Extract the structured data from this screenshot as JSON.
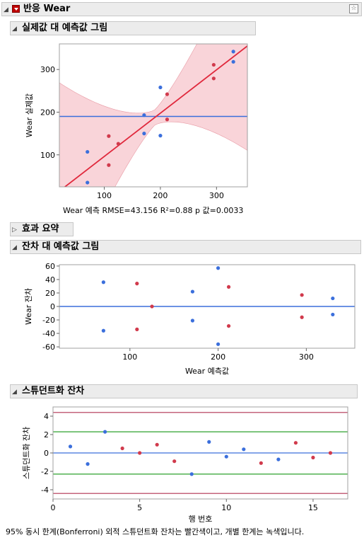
{
  "report": {
    "title": "반응 Wear"
  },
  "sections": {
    "actual_vs_pred": "실제값 대 예측값 그림",
    "effect_summary": "효과 요약",
    "resid_vs_pred": "잔차 대 예측값 그림",
    "studentized": "스튜던트화 잔차"
  },
  "icons": {
    "outline_toggle": "disclosure-triangle-icon",
    "red_menu": "red-triangle-menu-icon",
    "star": "star-icon"
  },
  "colors": {
    "red": "#d13a4c",
    "blue": "#3b6fdc",
    "green": "#2ca02c",
    "limit": "#b03050"
  },
  "chart_data": [
    {
      "type": "scatter",
      "name_text": "actual-by-predicted",
      "xlabel": "Wear 예측 RMSE=43.156 R²=0.88 p 값=0.0033",
      "ylabel": "Wear 실제값",
      "xlim": [
        20,
        355
      ],
      "ylim": [
        25,
        360
      ],
      "xticks": [
        100,
        200,
        300
      ],
      "yticks": [
        100,
        200,
        300
      ],
      "mean_line": 190,
      "fit_line": [
        [
          20,
          15
        ],
        [
          355,
          355
        ]
      ],
      "points": [
        {
          "x": 70,
          "y": 35,
          "color": "blue"
        },
        {
          "x": 70,
          "y": 107,
          "color": "blue"
        },
        {
          "x": 108,
          "y": 76,
          "color": "red"
        },
        {
          "x": 108,
          "y": 144,
          "color": "red"
        },
        {
          "x": 125,
          "y": 126,
          "color": "red"
        },
        {
          "x": 171,
          "y": 193,
          "color": "blue"
        },
        {
          "x": 171,
          "y": 150,
          "color": "blue"
        },
        {
          "x": 200,
          "y": 145,
          "color": "blue"
        },
        {
          "x": 200,
          "y": 258,
          "color": "blue"
        },
        {
          "x": 212,
          "y": 242,
          "color": "red"
        },
        {
          "x": 212,
          "y": 183,
          "color": "red"
        },
        {
          "x": 295,
          "y": 311,
          "color": "red"
        },
        {
          "x": 295,
          "y": 279,
          "color": "red"
        },
        {
          "x": 330,
          "y": 342,
          "color": "blue"
        },
        {
          "x": 330,
          "y": 318,
          "color": "blue"
        }
      ]
    },
    {
      "type": "scatter",
      "xlabel": "Wear 예측값",
      "ylabel": "Wear 잔차",
      "xlim": [
        20,
        355
      ],
      "ylim": [
        -62,
        62
      ],
      "xticks": [
        100,
        200,
        300
      ],
      "yticks": [
        -60,
        -40,
        -20,
        0,
        20,
        40,
        60
      ],
      "zero_line": 0,
      "points": [
        {
          "x": 70,
          "y": 36,
          "color": "blue"
        },
        {
          "x": 70,
          "y": -36,
          "color": "blue"
        },
        {
          "x": 108,
          "y": 34,
          "color": "red"
        },
        {
          "x": 108,
          "y": -34,
          "color": "red"
        },
        {
          "x": 125,
          "y": 0,
          "color": "red"
        },
        {
          "x": 171,
          "y": 22,
          "color": "blue"
        },
        {
          "x": 171,
          "y": -21,
          "color": "blue"
        },
        {
          "x": 200,
          "y": 57,
          "color": "blue"
        },
        {
          "x": 200,
          "y": -56,
          "color": "blue"
        },
        {
          "x": 212,
          "y": 29,
          "color": "red"
        },
        {
          "x": 212,
          "y": -29,
          "color": "red"
        },
        {
          "x": 295,
          "y": 17,
          "color": "red"
        },
        {
          "x": 295,
          "y": -16,
          "color": "red"
        },
        {
          "x": 330,
          "y": 12,
          "color": "blue"
        },
        {
          "x": 330,
          "y": -12,
          "color": "blue"
        }
      ]
    },
    {
      "type": "scatter",
      "xlabel": "행 번호",
      "ylabel": "스튜던트화 잔차",
      "xlim": [
        0,
        17
      ],
      "ylim": [
        -5,
        5
      ],
      "xticks": [
        0,
        5,
        10,
        15
      ],
      "yticks": [
        -4,
        -2,
        0,
        2,
        4
      ],
      "bonferroni_limits": [
        4.4,
        -4.4
      ],
      "individual_limits": [
        2.3,
        -2.3
      ],
      "points": [
        {
          "x": 1,
          "y": 0.7,
          "color": "blue"
        },
        {
          "x": 2,
          "y": -1.2,
          "color": "blue"
        },
        {
          "x": 3,
          "y": 2.3,
          "color": "blue"
        },
        {
          "x": 4,
          "y": 0.5,
          "color": "red"
        },
        {
          "x": 5,
          "y": 0.0,
          "color": "red"
        },
        {
          "x": 6,
          "y": 0.9,
          "color": "red"
        },
        {
          "x": 7,
          "y": -0.9,
          "color": "red"
        },
        {
          "x": 8,
          "y": -2.3,
          "color": "blue"
        },
        {
          "x": 9,
          "y": 1.2,
          "color": "blue"
        },
        {
          "x": 10,
          "y": -0.4,
          "color": "blue"
        },
        {
          "x": 11,
          "y": 0.4,
          "color": "blue"
        },
        {
          "x": 12,
          "y": -1.1,
          "color": "red"
        },
        {
          "x": 13,
          "y": -0.7,
          "color": "blue"
        },
        {
          "x": 14,
          "y": 1.1,
          "color": "red"
        },
        {
          "x": 15,
          "y": -0.5,
          "color": "red"
        },
        {
          "x": 16,
          "y": 0.0,
          "color": "red"
        }
      ]
    }
  ],
  "footnote": "95% 동시 한계(Bonferroni) 외적 스튜던트화 잔차는 빨간색이고, 개별 한계는 녹색입니다."
}
